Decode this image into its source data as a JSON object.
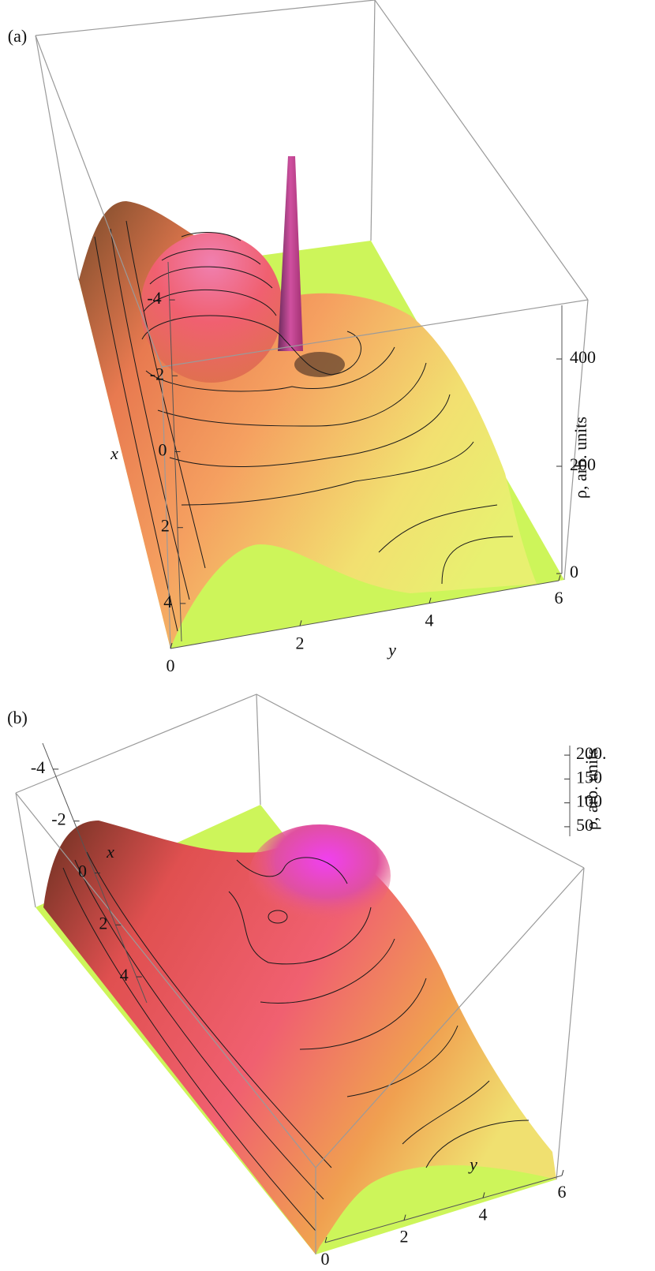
{
  "chart_data": [
    {
      "type": "surface3d",
      "panel_label": "(a)",
      "x_label": "x",
      "y_label": "y",
      "z_label": "ρ, arb. units",
      "xlim": [
        -5,
        5
      ],
      "xticks": [
        -4,
        -2,
        0,
        2,
        4
      ],
      "ylim": [
        0,
        6
      ],
      "yticks": [
        0,
        2,
        4,
        6
      ],
      "zlim": [
        0,
        500
      ],
      "zticks": [
        0,
        200,
        400
      ]
    },
    {
      "type": "surface3d",
      "panel_label": "(b)",
      "x_label": "x",
      "y_label": "y",
      "z_label": "ρ, arb. units",
      "xlim": [
        -5,
        5
      ],
      "xticks": [
        -4,
        -2,
        0,
        2,
        4
      ],
      "ylim": [
        0,
        6
      ],
      "yticks": [
        0,
        2,
        4,
        6
      ],
      "zlim": [
        30,
        220
      ],
      "zticks": [
        50,
        100,
        150,
        {
          "value": 200,
          "label": "200."
        }
      ]
    }
  ]
}
